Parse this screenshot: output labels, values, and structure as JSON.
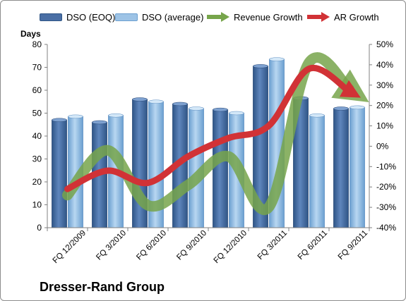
{
  "chart_data": {
    "type": "bar",
    "title": "",
    "company": "Dresser-Rand Group",
    "ylabel": "Days",
    "ylim": [
      0,
      80
    ],
    "yticks": [
      0,
      10,
      20,
      30,
      40,
      50,
      60,
      70,
      80
    ],
    "y2lim": [
      -40,
      50
    ],
    "y2ticks": [
      "-40%",
      "-30%",
      "-20%",
      "-10%",
      "0%",
      "10%",
      "20%",
      "30%",
      "40%",
      "50%"
    ],
    "categories": [
      "FQ 12/2009",
      "FQ 3/2010",
      "FQ 6/2010",
      "FQ 9/2010",
      "FQ 12/2010",
      "FQ 3/2011",
      "FQ 6/2011",
      "FQ 9/2011"
    ],
    "series": [
      {
        "name": "DSO (EOQ)",
        "kind": "bar",
        "color": "#4a6fa5",
        "values": [
          47,
          46,
          56,
          54,
          51.5,
          70.5,
          56.5,
          52
        ]
      },
      {
        "name": "DSO (average)",
        "kind": "bar",
        "color": "#9dc3e6",
        "values": [
          48.5,
          49,
          55,
          52,
          50,
          73.5,
          49,
          52.5
        ]
      },
      {
        "name": "Revenue Growth",
        "kind": "line",
        "axis": "right",
        "unit": "%",
        "color": "#77a54b",
        "values": [
          -24,
          -2,
          -29,
          -19,
          -5,
          -30,
          41,
          28
        ]
      },
      {
        "name": "AR Growth",
        "kind": "line",
        "axis": "right",
        "unit": "%",
        "color": "#d13236",
        "values": [
          -21,
          -12,
          -18,
          -5,
          4,
          10,
          38,
          27
        ]
      }
    ],
    "grid": false,
    "legend": "top"
  }
}
